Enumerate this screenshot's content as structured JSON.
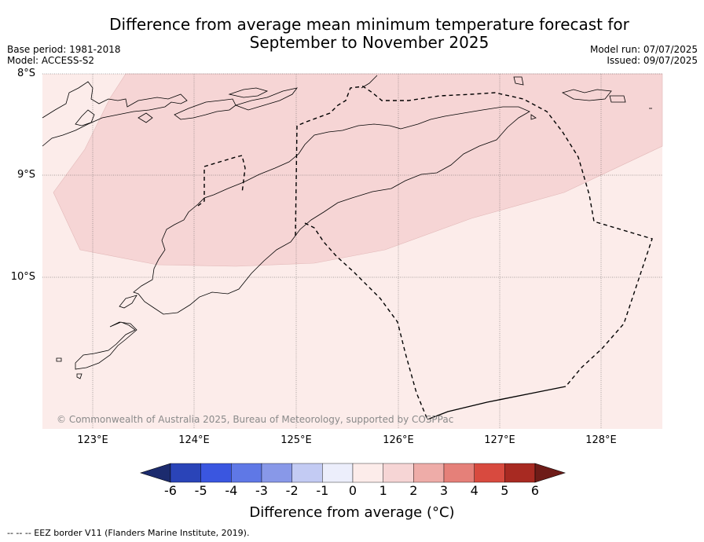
{
  "title_line1": "Difference from average mean minimum temperature forecast for",
  "title_line2": "September to November 2025",
  "base_period": "Base period: 1981-2018",
  "model": "Model: ACCESS-S2",
  "model_run": "Model run: 07/07/2025",
  "issued": "Issued: 09/07/2025",
  "latitude_labels": [
    "8°S",
    "9°S",
    "10°S"
  ],
  "longitude_labels": [
    "123°E",
    "124°E",
    "125°E",
    "126°E",
    "127°E",
    "128°E"
  ],
  "copyright": "© Commonwealth of Australia 2025, Bureau of Meteorology, supported by COSPPac",
  "colorbar": {
    "label": "Difference from average (°C)",
    "ticks": [
      "-6",
      "-5",
      "-4",
      "-3",
      "-2",
      "-1",
      "0",
      "1",
      "2",
      "3",
      "4",
      "5",
      "6"
    ],
    "colors": [
      "#1c2b6e",
      "#2a44b8",
      "#3a56e0",
      "#5f78e6",
      "#8898e8",
      "#c3cbf3",
      "#eceefb",
      "#fcecea",
      "#f6d5d5",
      "#eeaca8",
      "#e58079",
      "#d84a3f",
      "#a82a22",
      "#6e1c18"
    ]
  },
  "map": {
    "fill_colors": {
      "zero_to_one": "#fcecea",
      "one_to_two": "#f6d5d5"
    }
  },
  "footnote": "-- -- -- EEZ border V11 (Flanders Marine Institute, 2019)."
}
